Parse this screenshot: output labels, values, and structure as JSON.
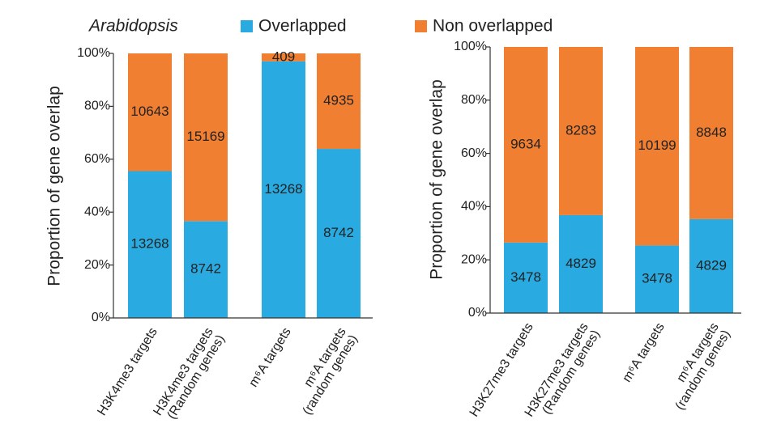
{
  "legend": [
    {
      "name": "Overlapped",
      "color": "#29abe2"
    },
    {
      "name": "Non overlapped",
      "color": "#f07f32"
    }
  ],
  "chart_data": [
    {
      "type": "bar",
      "stacked": true,
      "title": "Arabidopsis",
      "y_label": "Proportion of gene overlap",
      "categories": [
        [
          "H3K4me3 targets"
        ],
        [
          "H3K4me3 targets",
          "(Random genes)"
        ],
        [
          "m⁶A targets"
        ],
        [
          "m⁶A targets",
          "(random genes)"
        ]
      ],
      "series": [
        {
          "color": "#29abe2",
          "values": [
            55.5,
            36.6,
            97.0,
            63.9
          ],
          "counts": [
            13268,
            8742,
            13268,
            8742
          ]
        },
        {
          "color": "#f07f32",
          "values": [
            44.5,
            63.4,
            3.0,
            36.1
          ],
          "counts": [
            10643,
            15169,
            409,
            4935
          ]
        }
      ],
      "ylim": [
        0,
        100
      ],
      "yticks": [
        {
          "value": 0,
          "label": "0%"
        },
        {
          "value": 20,
          "label": "20%"
        },
        {
          "value": 40,
          "label": "40%"
        },
        {
          "value": 60,
          "label": "60%"
        },
        {
          "value": 80,
          "label": "80%"
        },
        {
          "value": 100,
          "label": "100%"
        }
      ]
    },
    {
      "type": "bar",
      "stacked": true,
      "y_label": "Proportion of gene overlap",
      "categories": [
        [
          "H3K27me3 targets"
        ],
        [
          "H3K27me3 targets",
          "(Random genes)"
        ],
        [
          "m⁶A targets"
        ],
        [
          "m⁶A targets",
          "(random genes)"
        ]
      ],
      "series": [
        {
          "color": "#29abe2",
          "values": [
            26.5,
            36.8,
            25.4,
            35.3
          ],
          "counts": [
            3478,
            4829,
            3478,
            4829
          ]
        },
        {
          "color": "#f07f32",
          "values": [
            73.5,
            63.2,
            74.6,
            64.7
          ],
          "counts": [
            9634,
            8283,
            10199,
            8848
          ]
        }
      ],
      "ylim": [
        0,
        100
      ],
      "yticks": [
        {
          "value": 0,
          "label": "0%"
        },
        {
          "value": 20,
          "label": "20%"
        },
        {
          "value": 40,
          "label": "40%"
        },
        {
          "value": 60,
          "label": "60%"
        },
        {
          "value": 80,
          "label": "80%"
        },
        {
          "value": 100,
          "label": "100%"
        }
      ]
    }
  ]
}
